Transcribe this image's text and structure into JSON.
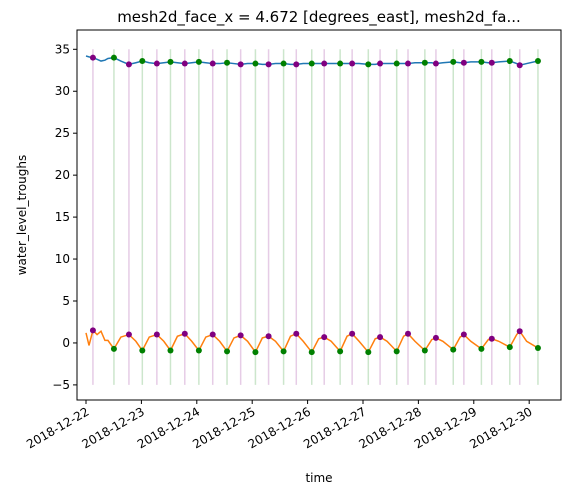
{
  "chart_data": {
    "type": "line",
    "title": "mesh2d_face_x = 4.672 [degrees_east], mesh2d_fa...",
    "xlabel": "time",
    "ylabel": "water_level_troughs",
    "xlim": [
      "2018-12-21 20:06",
      "2018-12-30 13:47"
    ],
    "ylim": [
      -6.8,
      37.3
    ],
    "xticks": [
      "2018-12-22",
      "2018-12-23",
      "2018-12-24",
      "2018-12-25",
      "2018-12-26",
      "2018-12-27",
      "2018-12-28",
      "2018-12-29",
      "2018-12-30"
    ],
    "yticks": [
      {
        "value": -5,
        "label": "−5"
      },
      0,
      5,
      10,
      15,
      20,
      25,
      30,
      35
    ],
    "x": [
      "2018-12-22 00:00",
      "2018-12-22 01:18",
      "2018-12-22 03:00",
      "2018-12-22 04:48",
      "2018-12-22 06:30",
      "2018-12-22 08:12",
      "2018-12-22 09:30",
      "2018-12-22 12:06",
      "2018-12-22 15:06",
      "2018-12-22 18:36",
      "2018-12-22 21:36",
      "2018-12-23 00:24",
      "2018-12-23 03:24",
      "2018-12-23 06:42",
      "2018-12-23 09:42",
      "2018-12-23 12:36",
      "2018-12-23 15:36",
      "2018-12-23 18:48",
      "2018-12-23 21:48",
      "2018-12-24 00:54",
      "2018-12-24 03:54",
      "2018-12-24 06:54",
      "2018-12-24 09:54",
      "2018-12-24 13:06",
      "2018-12-24 16:06",
      "2018-12-24 19:00",
      "2018-12-24 22:00",
      "2018-12-25 01:24",
      "2018-12-25 04:24",
      "2018-12-25 07:06",
      "2018-12-25 10:06",
      "2018-12-25 13:36",
      "2018-12-25 16:36",
      "2018-12-25 19:06",
      "2018-12-25 22:06",
      "2018-12-26 01:48",
      "2018-12-26 04:48",
      "2018-12-26 07:12",
      "2018-12-26 10:12",
      "2018-12-26 14:06",
      "2018-12-26 17:06",
      "2018-12-26 19:18",
      "2018-12-26 22:18",
      "2018-12-27 02:18",
      "2018-12-27 05:18",
      "2018-12-27 07:24",
      "2018-12-27 10:24",
      "2018-12-27 14:36",
      "2018-12-27 17:36",
      "2018-12-27 19:30",
      "2018-12-27 22:30",
      "2018-12-28 02:48",
      "2018-12-28 05:48",
      "2018-12-28 07:36",
      "2018-12-28 10:36",
      "2018-12-28 15:06",
      "2018-12-28 18:06",
      "2018-12-28 19:42",
      "2018-12-28 22:42",
      "2018-12-29 03:18",
      "2018-12-29 06:18",
      "2018-12-29 07:48",
      "2018-12-29 10:48",
      "2018-12-29 15:36",
      "2018-12-29 18:36",
      "2018-12-29 19:54",
      "2018-12-29 22:54",
      "2018-12-30 03:48"
    ],
    "series": [
      {
        "color": "#1f77b4",
        "values": [
          34.2,
          34.1,
          34.0,
          33.8,
          33.6,
          33.7,
          33.9,
          34.0,
          33.6,
          33.2,
          33.4,
          33.6,
          33.4,
          33.3,
          33.4,
          33.5,
          33.4,
          33.3,
          33.4,
          33.5,
          33.4,
          33.3,
          33.3,
          33.4,
          33.3,
          33.2,
          33.3,
          33.3,
          33.2,
          33.2,
          33.3,
          33.3,
          33.2,
          33.2,
          33.3,
          33.3,
          33.3,
          33.3,
          33.3,
          33.3,
          33.3,
          33.3,
          33.3,
          33.2,
          33.2,
          33.3,
          33.3,
          33.3,
          33.3,
          33.3,
          33.4,
          33.4,
          33.4,
          33.3,
          33.4,
          33.5,
          33.4,
          33.4,
          33.5,
          33.5,
          33.4,
          33.4,
          33.5,
          33.6,
          33.3,
          33.1,
          33.3,
          33.6
        ]
      },
      {
        "color": "#ff7f0e",
        "values": [
          1.2,
          -0.3,
          1.5,
          1.0,
          1.4,
          0.3,
          0.3,
          -0.7,
          0.7,
          1.0,
          0.2,
          -0.9,
          0.7,
          1.0,
          0.2,
          -0.9,
          0.8,
          1.1,
          0.2,
          -0.9,
          0.7,
          1.0,
          0.2,
          -1.0,
          0.6,
          0.9,
          0.2,
          -1.1,
          0.6,
          0.8,
          0.2,
          -1.0,
          0.8,
          1.1,
          0.2,
          -1.1,
          0.5,
          0.7,
          0.2,
          -1.0,
          0.8,
          1.1,
          0.2,
          -1.1,
          0.5,
          0.7,
          0.2,
          -1.0,
          0.8,
          1.1,
          0.2,
          -0.9,
          0.4,
          0.6,
          0.2,
          -0.8,
          0.7,
          1.0,
          0.2,
          -0.7,
          0.4,
          0.5,
          0.2,
          -0.5,
          1.0,
          1.4,
          0.2,
          -0.6
        ]
      }
    ],
    "markers": [
      {
        "color": "purple",
        "x": [
          "2018-12-22 03:00",
          "2018-12-22 18:36",
          "2018-12-23 06:42",
          "2018-12-23 18:48",
          "2018-12-24 06:54",
          "2018-12-24 19:00",
          "2018-12-25 07:06",
          "2018-12-25 19:06",
          "2018-12-26 07:12",
          "2018-12-26 19:18",
          "2018-12-27 07:24",
          "2018-12-27 19:30",
          "2018-12-28 07:36",
          "2018-12-28 19:42",
          "2018-12-29 07:48",
          "2018-12-29 19:54"
        ],
        "values": [
          34.0,
          33.2,
          33.3,
          33.3,
          33.3,
          33.2,
          33.2,
          33.2,
          33.3,
          33.3,
          33.3,
          33.3,
          33.3,
          33.4,
          33.4,
          33.1
        ]
      },
      {
        "color": "purple",
        "x": [
          "2018-12-22 03:00",
          "2018-12-22 18:36",
          "2018-12-23 06:42",
          "2018-12-23 18:48",
          "2018-12-24 06:54",
          "2018-12-24 19:00",
          "2018-12-25 07:06",
          "2018-12-25 19:06",
          "2018-12-26 07:12",
          "2018-12-26 19:18",
          "2018-12-27 07:24",
          "2018-12-27 19:30",
          "2018-12-28 07:36",
          "2018-12-28 19:42",
          "2018-12-29 07:48",
          "2018-12-29 19:54"
        ],
        "values": [
          1.5,
          1.0,
          1.0,
          1.1,
          1.0,
          0.9,
          0.8,
          1.1,
          0.7,
          1.1,
          0.7,
          1.1,
          0.6,
          1.0,
          0.5,
          1.4
        ]
      },
      {
        "color": "green",
        "x": [
          "2018-12-22 12:06",
          "2018-12-23 00:24",
          "2018-12-23 12:36",
          "2018-12-24 00:54",
          "2018-12-24 13:06",
          "2018-12-25 01:24",
          "2018-12-25 13:36",
          "2018-12-26 01:48",
          "2018-12-26 14:06",
          "2018-12-27 02:18",
          "2018-12-27 14:36",
          "2018-12-28 02:48",
          "2018-12-28 15:06",
          "2018-12-29 03:18",
          "2018-12-29 15:36",
          "2018-12-30 03:48"
        ],
        "values": [
          34.0,
          33.6,
          33.5,
          33.5,
          33.4,
          33.3,
          33.3,
          33.3,
          33.3,
          33.2,
          33.3,
          33.4,
          33.5,
          33.5,
          33.6,
          33.6
        ]
      },
      {
        "color": "green",
        "x": [
          "2018-12-22 12:06",
          "2018-12-23 00:24",
          "2018-12-23 12:36",
          "2018-12-24 00:54",
          "2018-12-24 13:06",
          "2018-12-25 01:24",
          "2018-12-25 13:36",
          "2018-12-26 01:48",
          "2018-12-26 14:06",
          "2018-12-27 02:18",
          "2018-12-27 14:36",
          "2018-12-28 02:48",
          "2018-12-28 15:06",
          "2018-12-29 03:18",
          "2018-12-29 15:36",
          "2018-12-30 03:48"
        ],
        "values": [
          -0.7,
          -0.9,
          -0.9,
          -0.9,
          -1.0,
          -1.1,
          -1.0,
          -1.1,
          -1.0,
          -1.1,
          -1.0,
          -0.9,
          -0.8,
          -0.7,
          -0.5,
          -0.6
        ]
      }
    ],
    "vlines": [
      {
        "color": "purple",
        "alpha": 0.2,
        "ymin": -5,
        "ymax": 35,
        "x": [
          "2018-12-22 03:00",
          "2018-12-22 18:36",
          "2018-12-23 06:42",
          "2018-12-23 18:48",
          "2018-12-24 06:54",
          "2018-12-24 19:00",
          "2018-12-25 07:06",
          "2018-12-25 19:06",
          "2018-12-26 07:12",
          "2018-12-26 19:18",
          "2018-12-27 07:24",
          "2018-12-27 19:30",
          "2018-12-28 07:36",
          "2018-12-28 19:42",
          "2018-12-29 07:48",
          "2018-12-29 19:54"
        ]
      },
      {
        "color": "green",
        "alpha": 0.2,
        "ymin": -5,
        "ymax": 35,
        "x": [
          "2018-12-22 12:06",
          "2018-12-23 00:24",
          "2018-12-23 12:36",
          "2018-12-24 00:54",
          "2018-12-24 13:06",
          "2018-12-25 01:24",
          "2018-12-25 13:36",
          "2018-12-26 01:48",
          "2018-12-26 14:06",
          "2018-12-27 02:18",
          "2018-12-27 14:36",
          "2018-12-28 02:48",
          "2018-12-28 15:06",
          "2018-12-29 03:18",
          "2018-12-29 15:36",
          "2018-12-30 03:48"
        ]
      }
    ]
  }
}
